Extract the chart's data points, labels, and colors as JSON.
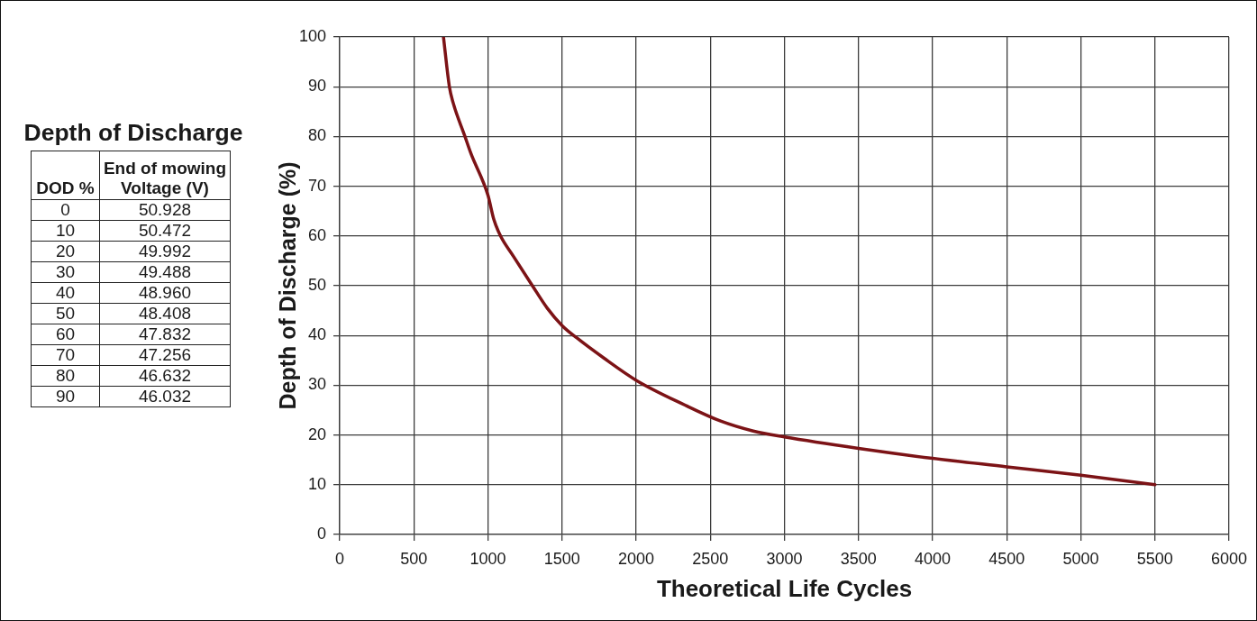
{
  "chart_data": [
    {
      "type": "heatmap",
      "title": "Depth of Discharge",
      "ylabel": "DOD %",
      "categories": [
        "End of mowing Voltage (V)"
      ],
      "y_categories": [
        "0",
        "10",
        "20",
        "30",
        "40",
        "50",
        "60",
        "70",
        "80",
        "90"
      ],
      "cells": [
        [
          50.928
        ],
        [
          50.472
        ],
        [
          49.992
        ],
        [
          49.488
        ],
        [
          48.96
        ],
        [
          48.408
        ],
        [
          47.832
        ],
        [
          47.256
        ],
        [
          46.632
        ],
        [
          46.032
        ]
      ],
      "cell_labels": [
        [
          "50.928"
        ],
        [
          "50.472"
        ],
        [
          "49.992"
        ],
        [
          "49.488"
        ],
        [
          "48.960"
        ],
        [
          "48.408"
        ],
        [
          "47.832"
        ],
        [
          "47.256"
        ],
        [
          "46.632"
        ],
        [
          "46.032"
        ]
      ],
      "data_labels": true
    },
    {
      "type": "line",
      "xlabel": "Theoretical Life Cycles",
      "ylabel": "Depth of Discharge (%)",
      "x": [
        700,
        740,
        765,
        845,
        885,
        1000,
        1040,
        1085,
        1170,
        1300,
        1400,
        1500,
        1600,
        1780,
        2000,
        2330,
        2570,
        2790,
        3000,
        3500,
        4000,
        4500,
        5000,
        5500
      ],
      "values": [
        100,
        90,
        86.8,
        80,
        76.6,
        68.2,
        63.3,
        60,
        56,
        50,
        45.5,
        42,
        39.5,
        35.5,
        31,
        26,
        22.8,
        20.8,
        19.6,
        17.3,
        15.3,
        13.6,
        11.9,
        10
      ],
      "color": "#7c1316",
      "xlim": [
        0,
        6000
      ],
      "xticks": [
        0,
        500,
        1000,
        1500,
        2000,
        2500,
        3000,
        3500,
        4000,
        4500,
        5000,
        5500,
        6000
      ],
      "ylim": [
        0,
        100
      ],
      "yticks": [
        0,
        10,
        20,
        30,
        40,
        50,
        60,
        70,
        80,
        90,
        100
      ],
      "grid": true
    }
  ]
}
